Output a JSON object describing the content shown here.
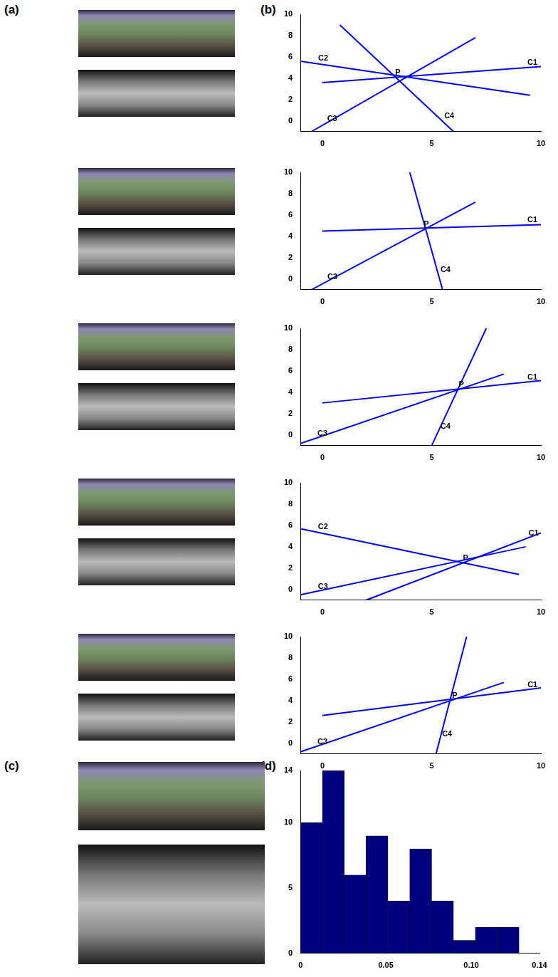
{
  "figure": {
    "panel_letters": [
      "(a)",
      "(b)",
      "(c)",
      "(d)"
    ]
  },
  "chart_data": [
    {
      "type": "line",
      "xlim": [
        -1,
        10
      ],
      "ylim": [
        -1,
        10
      ],
      "xticks": [
        0,
        5,
        10
      ],
      "yticks": [
        0,
        2,
        4,
        6,
        8,
        10
      ],
      "grid": false,
      "color": "#0000ff",
      "series": [
        {
          "name": "C1",
          "x": [
            0,
            10
          ],
          "values": [
            3.6,
            5.1
          ]
        },
        {
          "name": "C2",
          "x": [
            9.5,
            -1
          ],
          "values": [
            2.4,
            5.6
          ]
        },
        {
          "name": "C3",
          "x": [
            7,
            -0.5
          ],
          "values": [
            7.8,
            -1
          ]
        },
        {
          "name": "C4",
          "x": [
            0.8,
            6
          ],
          "values": [
            9,
            -1
          ]
        },
        {
          "name": "P",
          "type": "scatter",
          "marker": "none",
          "x": [
            3.4
          ],
          "values": [
            4.2
          ]
        }
      ]
    },
    {
      "type": "line",
      "xlim": [
        -1,
        10
      ],
      "ylim": [
        -1,
        10
      ],
      "xticks": [
        0,
        5,
        10
      ],
      "yticks": [
        0,
        2,
        4,
        6,
        8,
        10
      ],
      "grid": false,
      "color": "#0000ff",
      "series": [
        {
          "name": "C1",
          "x": [
            0,
            10
          ],
          "values": [
            4.5,
            5.1
          ]
        },
        {
          "name": "C3",
          "x": [
            7,
            -0.5
          ],
          "values": [
            7.2,
            -1
          ]
        },
        {
          "name": "C4",
          "x": [
            4,
            5.5
          ],
          "values": [
            10,
            -1
          ]
        },
        {
          "name": "P",
          "type": "scatter",
          "marker": "none",
          "x": [
            4.7
          ],
          "values": [
            4.8
          ]
        }
      ]
    },
    {
      "type": "line",
      "xlim": [
        -1,
        10
      ],
      "ylim": [
        -1,
        10
      ],
      "xticks": [
        0,
        5,
        10
      ],
      "yticks": [
        0,
        2,
        4,
        6,
        8,
        10
      ],
      "grid": false,
      "color": "#0000ff",
      "series": [
        {
          "name": "C1",
          "x": [
            0,
            10
          ],
          "values": [
            3,
            5.1
          ]
        },
        {
          "name": "C3",
          "x": [
            8.3,
            -1
          ],
          "values": [
            5.7,
            -0.8
          ]
        },
        {
          "name": "C4",
          "x": [
            7.5,
            5
          ],
          "values": [
            10,
            -1
          ]
        },
        {
          "name": "P",
          "type": "scatter",
          "marker": "none",
          "x": [
            6.3
          ],
          "values": [
            4.4
          ]
        }
      ]
    },
    {
      "type": "line",
      "xlim": [
        -1,
        10
      ],
      "ylim": [
        -1,
        10
      ],
      "xticks": [
        0,
        5,
        10
      ],
      "yticks": [
        0,
        2,
        4,
        6,
        8,
        10
      ],
      "grid": false,
      "color": "#0000ff",
      "series": [
        {
          "name": "C2",
          "x": [
            9,
            -1
          ],
          "values": [
            1.4,
            5.7
          ]
        },
        {
          "name": "C1",
          "x": [
            2,
            10
          ],
          "values": [
            -1,
            5.3
          ]
        },
        {
          "name": "C3",
          "x": [
            9.3,
            -1
          ],
          "values": [
            4,
            -0.5
          ]
        },
        {
          "name": "P",
          "type": "scatter",
          "marker": "none",
          "x": [
            6.5
          ],
          "values": [
            2.6
          ]
        }
      ]
    },
    {
      "type": "line",
      "xlim": [
        -1,
        10
      ],
      "ylim": [
        -1,
        10
      ],
      "xticks": [
        0,
        5,
        10
      ],
      "yticks": [
        0,
        2,
        4,
        6,
        8,
        10
      ],
      "grid": false,
      "color": "#0000ff",
      "series": [
        {
          "name": "C1",
          "x": [
            0,
            10
          ],
          "values": [
            2.6,
            5.2
          ]
        },
        {
          "name": "C3",
          "x": [
            8.3,
            -1
          ],
          "values": [
            5.7,
            -0.8
          ]
        },
        {
          "name": "C4",
          "x": [
            6.6,
            5.2
          ],
          "values": [
            10,
            -1
          ]
        },
        {
          "name": "P",
          "type": "scatter",
          "marker": "none",
          "x": [
            6
          ],
          "values": [
            4.1
          ]
        }
      ]
    },
    {
      "type": "histogram",
      "color": "#00007f",
      "grid": false,
      "bins": [
        0,
        0.0128,
        0.0256,
        0.0384,
        0.0512,
        0.064,
        0.0768,
        0.0896,
        0.1024,
        0.1152,
        0.128
      ],
      "counts": [
        10,
        14,
        6,
        9,
        4,
        8,
        4,
        1,
        2,
        2
      ],
      "xlim": [
        0,
        0.14
      ],
      "ylim": [
        0,
        14
      ],
      "xticks": [
        0,
        0.05,
        {
          "value": 0.1,
          "label": "0.10"
        },
        0.14
      ],
      "yticks": [
        0,
        5,
        10,
        14
      ]
    }
  ]
}
